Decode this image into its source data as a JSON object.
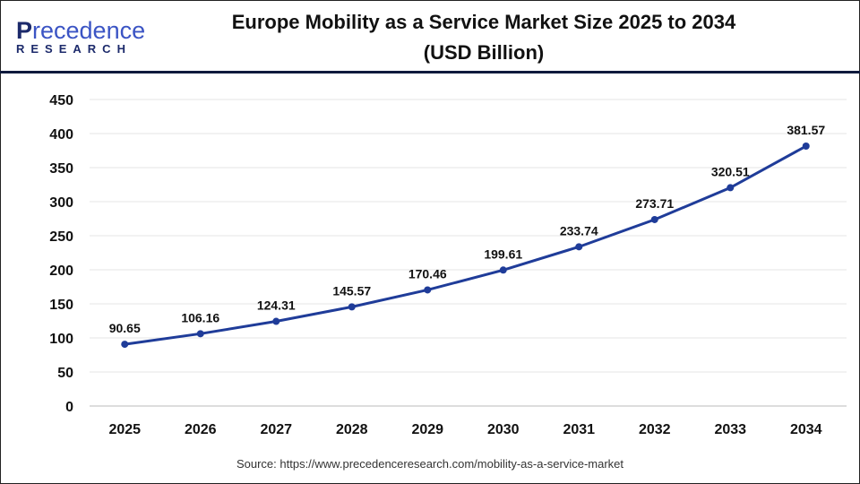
{
  "logo": {
    "line1_first": "P",
    "line1_rest": "recedence",
    "line2": "RESEARCH"
  },
  "source": "Source: https://www.precedenceresearch.com/mobility-as-a-service-market",
  "chart_data": {
    "type": "line",
    "title": "Europe Mobility as a Service Market Size 2025 to 2034 (USD Billion)",
    "title_line1": "Europe Mobility as a Service Market Size 2025 to 2034",
    "title_line2": "(USD Billion)",
    "categories": [
      "2025",
      "2026",
      "2027",
      "2028",
      "2029",
      "2030",
      "2031",
      "2032",
      "2033",
      "2034"
    ],
    "values": [
      90.65,
      106.16,
      124.31,
      145.57,
      170.46,
      199.61,
      233.74,
      273.71,
      320.51,
      381.57
    ],
    "ylim": [
      0,
      450
    ],
    "yticks": [
      0,
      50,
      100,
      150,
      200,
      250,
      300,
      350,
      400,
      450
    ],
    "grid": true,
    "line_color": "#1f3c99"
  }
}
